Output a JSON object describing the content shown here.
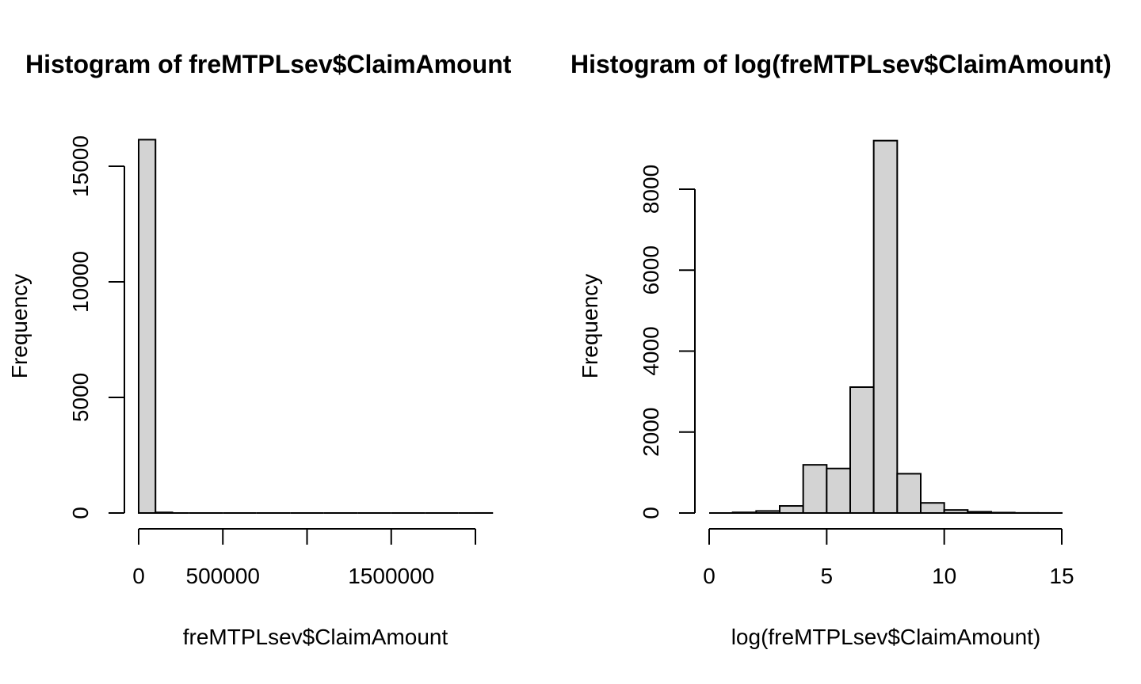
{
  "chart_data": [
    {
      "type": "bar",
      "subtype": "histogram",
      "title": "Histogram of freMTPLsev$ClaimAmount",
      "xlabel": "freMTPLsev$ClaimAmount",
      "ylabel": "Frequency",
      "xlim": [
        0,
        2100000
      ],
      "ylim": [
        0,
        16000
      ],
      "x_ticks": [
        0,
        500000,
        1000000,
        1500000,
        2000000
      ],
      "x_tick_labels": [
        "0",
        "500000",
        "",
        "1500000",
        ""
      ],
      "y_ticks": [
        0,
        5000,
        10000,
        15000
      ],
      "y_tick_labels": [
        "0",
        "5000",
        "10000",
        "15000"
      ],
      "bin_width": 100000,
      "bins": [
        {
          "x0": 0,
          "x1": 100000,
          "value": 16150
        },
        {
          "x0": 100000,
          "x1": 200000,
          "value": 25
        },
        {
          "x0": 200000,
          "x1": 300000,
          "value": 0
        },
        {
          "x0": 300000,
          "x1": 400000,
          "value": 0
        },
        {
          "x0": 400000,
          "x1": 500000,
          "value": 0
        },
        {
          "x0": 500000,
          "x1": 600000,
          "value": 0
        },
        {
          "x0": 600000,
          "x1": 700000,
          "value": 0
        },
        {
          "x0": 700000,
          "x1": 800000,
          "value": 0
        },
        {
          "x0": 800000,
          "x1": 900000,
          "value": 0
        },
        {
          "x0": 900000,
          "x1": 1000000,
          "value": 0
        },
        {
          "x0": 1000000,
          "x1": 1100000,
          "value": 0
        },
        {
          "x0": 1100000,
          "x1": 1200000,
          "value": 0
        },
        {
          "x0": 1200000,
          "x1": 1300000,
          "value": 0
        },
        {
          "x0": 1300000,
          "x1": 1400000,
          "value": 0
        },
        {
          "x0": 1400000,
          "x1": 1500000,
          "value": 0
        },
        {
          "x0": 1500000,
          "x1": 1600000,
          "value": 0
        },
        {
          "x0": 1600000,
          "x1": 1700000,
          "value": 0
        },
        {
          "x0": 1700000,
          "x1": 1800000,
          "value": 0
        },
        {
          "x0": 1800000,
          "x1": 1900000,
          "value": 0
        },
        {
          "x0": 1900000,
          "x1": 2000000,
          "value": 0
        },
        {
          "x0": 2000000,
          "x1": 2100000,
          "value": 1
        }
      ],
      "bar_color": "#d3d3d3",
      "edge_color": "#000000",
      "grid": false
    },
    {
      "type": "bar",
      "subtype": "histogram",
      "title": "Histogram of log(freMTPLsev$ClaimAmount)",
      "xlabel": "log(freMTPLsev$ClaimAmount)",
      "ylabel": "Frequency",
      "xlim": [
        0,
        15
      ],
      "ylim": [
        0,
        9200
      ],
      "x_ticks": [
        0,
        5,
        10,
        15
      ],
      "x_tick_labels": [
        "0",
        "5",
        "10",
        "15"
      ],
      "y_ticks": [
        0,
        2000,
        4000,
        6000,
        8000
      ],
      "y_tick_labels": [
        "0",
        "2000",
        "4000",
        "6000",
        "8000"
      ],
      "bin_width": 1,
      "bins": [
        {
          "x0": 0,
          "x1": 1,
          "value": 0
        },
        {
          "x0": 1,
          "x1": 2,
          "value": 15
        },
        {
          "x0": 2,
          "x1": 3,
          "value": 50
        },
        {
          "x0": 3,
          "x1": 4,
          "value": 175
        },
        {
          "x0": 4,
          "x1": 5,
          "value": 1190
        },
        {
          "x0": 5,
          "x1": 6,
          "value": 1100
        },
        {
          "x0": 6,
          "x1": 7,
          "value": 3110
        },
        {
          "x0": 7,
          "x1": 8,
          "value": 9200
        },
        {
          "x0": 8,
          "x1": 9,
          "value": 970
        },
        {
          "x0": 9,
          "x1": 10,
          "value": 250
        },
        {
          "x0": 10,
          "x1": 11,
          "value": 75
        },
        {
          "x0": 11,
          "x1": 12,
          "value": 30
        },
        {
          "x0": 12,
          "x1": 13,
          "value": 10
        },
        {
          "x0": 13,
          "x1": 14,
          "value": 2
        },
        {
          "x0": 14,
          "x1": 15,
          "value": 1
        }
      ],
      "bar_color": "#d3d3d3",
      "edge_color": "#000000",
      "grid": false
    }
  ]
}
